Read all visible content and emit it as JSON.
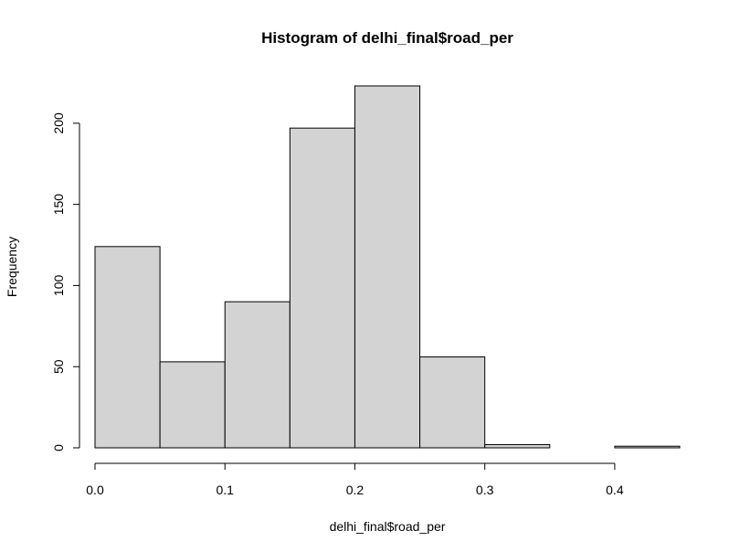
{
  "chart_data": {
    "type": "bar",
    "title": "Histogram of delhi_final$road_per",
    "xlabel": "delhi_final$road_per",
    "ylabel": "Frequency",
    "bins": [
      {
        "start": 0.0,
        "end": 0.05,
        "count": 124
      },
      {
        "start": 0.05,
        "end": 0.1,
        "count": 53
      },
      {
        "start": 0.1,
        "end": 0.15,
        "count": 90
      },
      {
        "start": 0.15,
        "end": 0.2,
        "count": 197
      },
      {
        "start": 0.2,
        "end": 0.25,
        "count": 223
      },
      {
        "start": 0.25,
        "end": 0.3,
        "count": 56
      },
      {
        "start": 0.3,
        "end": 0.35,
        "count": 2
      },
      {
        "start": 0.35,
        "end": 0.4,
        "count": 0
      },
      {
        "start": 0.4,
        "end": 0.45,
        "count": 1
      }
    ],
    "xlim": [
      0,
      0.45
    ],
    "ylim": [
      0,
      223
    ],
    "x_ticks": [
      {
        "value": 0.0,
        "label": "0.0"
      },
      {
        "value": 0.1,
        "label": "0.1"
      },
      {
        "value": 0.2,
        "label": "0.2"
      },
      {
        "value": 0.3,
        "label": "0.3"
      },
      {
        "value": 0.4,
        "label": "0.4"
      }
    ],
    "y_ticks": [
      {
        "value": 0,
        "label": "0"
      },
      {
        "value": 50,
        "label": "50"
      },
      {
        "value": 100,
        "label": "100"
      },
      {
        "value": 150,
        "label": "150"
      },
      {
        "value": 200,
        "label": "200"
      }
    ],
    "bar_fill": "#d3d3d3",
    "bar_stroke": "#000000",
    "grid": false
  }
}
